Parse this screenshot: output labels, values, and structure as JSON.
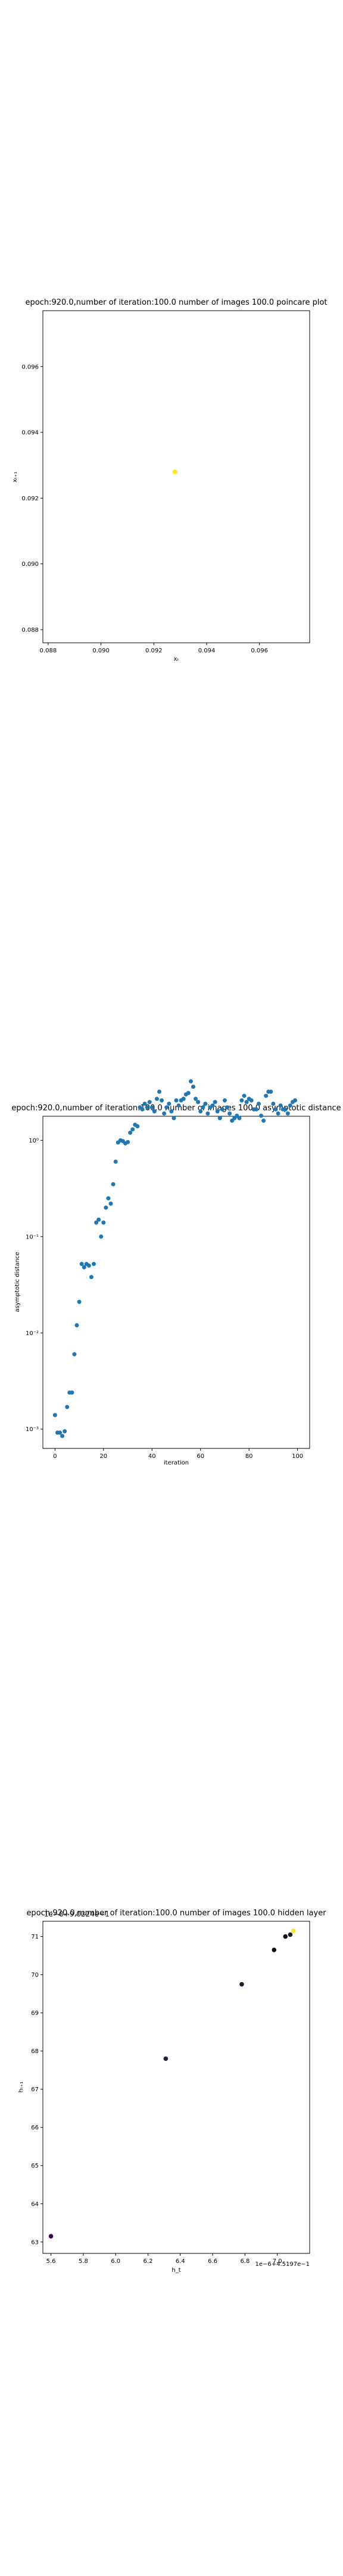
{
  "chart_data": [
    {
      "type": "scatter",
      "title": "epoch:920.0,number of iteration:100.0 number of images 100.0 poincare plot",
      "xlabel": "xₜ",
      "ylabel": "xₜ₊₁",
      "xlim": [
        0.0878,
        0.0979
      ],
      "ylim": [
        0.0876,
        0.0977
      ],
      "xticks": [
        "0.088",
        "0.090",
        "0.092",
        "0.094",
        "0.096"
      ],
      "yticks": [
        "0.088",
        "0.090",
        "0.092",
        "0.094",
        "0.096"
      ],
      "points": [
        {
          "x": 0.0928,
          "y": 0.0928
        }
      ],
      "point_color": "#fde725",
      "grid": false
    },
    {
      "type": "scatter",
      "title": "epoch:920.0,number of iteration:100.0  number of images 100.0 asymptotic distance",
      "xlabel": "iteration",
      "ylabel": "asymptotic distance",
      "yscale": "log",
      "xlim": [
        -5,
        105
      ],
      "ylim_log10": [
        -3.2,
        0.25
      ],
      "xticks": [
        "0",
        "20",
        "40",
        "60",
        "80",
        "100"
      ],
      "yticks": [
        "10⁻³",
        "10⁻²",
        "10⁻¹",
        "10⁰"
      ],
      "point_color": "#1f77b4",
      "grid": false,
      "x": [
        0,
        1,
        2,
        3,
        4,
        5,
        6,
        7,
        8,
        9,
        10,
        11,
        12,
        13,
        14,
        15,
        16,
        17,
        18,
        19,
        20,
        21,
        22,
        23,
        24,
        25,
        26,
        27,
        28,
        29,
        30,
        31,
        32,
        33,
        34,
        35,
        36,
        37,
        38,
        39,
        40,
        41,
        42,
        43,
        44,
        45,
        46,
        47,
        48,
        49,
        50,
        51,
        52,
        53,
        54,
        55,
        56,
        57,
        58,
        59,
        60,
        61,
        62,
        63,
        64,
        65,
        66,
        67,
        68,
        69,
        70,
        71,
        72,
        73,
        74,
        75,
        76,
        77,
        78,
        79,
        80,
        81,
        82,
        83,
        84,
        85,
        86,
        87,
        88,
        89,
        90,
        91,
        92,
        93,
        94,
        95,
        96,
        97,
        98,
        99
      ],
      "y": [
        0.0014,
        0.00092,
        0.00092,
        0.00085,
        0.00095,
        0.0017,
        0.0024,
        0.0024,
        0.006,
        0.012,
        0.021,
        0.052,
        0.048,
        0.052,
        0.05,
        0.038,
        0.052,
        0.14,
        0.15,
        0.1,
        0.14,
        0.2,
        0.25,
        0.22,
        0.35,
        0.6,
        0.95,
        1.0,
        0.98,
        0.93,
        0.96,
        1.2,
        1.3,
        1.45,
        1.4,
        2.2,
        2.1,
        2.4,
        2.2,
        2.5,
        2.2,
        2.0,
        2.7,
        3.2,
        2.6,
        1.9,
        2.2,
        2.4,
        2.0,
        1.7,
        2.6,
        2.3,
        2.6,
        2.7,
        3.0,
        3.1,
        4.1,
        3.6,
        2.7,
        2.5,
        2.0,
        2.2,
        2.4,
        1.9,
        2.2,
        2.3,
        2.5,
        2.0,
        1.7,
        2.1,
        2.6,
        2.2,
        1.9,
        1.6,
        1.7,
        1.8,
        1.7,
        2.6,
        2.9,
        2.5,
        2.7,
        2.6,
        2.1,
        2.1,
        2.4,
        1.8,
        1.6,
        2.9,
        3.2,
        3.2,
        2.4,
        2.1,
        1.9,
        2.3,
        2.1,
        2.1,
        1.9,
        2.3,
        2.5,
        2.6
      ]
    },
    {
      "type": "scatter",
      "title": "epoch:920.0,number of iteration:100.0  number of images 100.0 hidden layer",
      "overlay_text": "1e−8+9.0224e−1",
      "offset_label": "1e−6+4.5197e−1",
      "xlabel": "h_t",
      "ylabel": "hₜ₊₁",
      "xlim": [
        5.55,
        7.2
      ],
      "ylim": [
        62.7,
        71.4
      ],
      "xticks": [
        "5.6",
        "5.8",
        "6.0",
        "6.2",
        "6.4",
        "6.6",
        "6.8",
        "7.0"
      ],
      "yticks": [
        "63",
        "64",
        "65",
        "66",
        "67",
        "68",
        "69",
        "70",
        "71"
      ],
      "grid": false,
      "points": [
        {
          "x": 5.6,
          "y": 63.15,
          "color": "#440154"
        },
        {
          "x": 6.31,
          "y": 67.8,
          "color": "#2a1f3a"
        },
        {
          "x": 6.78,
          "y": 69.75,
          "color": "#1a1a2e"
        },
        {
          "x": 6.98,
          "y": 70.65,
          "color": "#0d0d1a"
        },
        {
          "x": 7.05,
          "y": 71.0,
          "color": "#0d0d1a"
        },
        {
          "x": 7.1,
          "y": 71.15,
          "color": "#fde725"
        },
        {
          "x": 7.08,
          "y": 71.05,
          "color": "#1b1b1b"
        }
      ]
    }
  ]
}
